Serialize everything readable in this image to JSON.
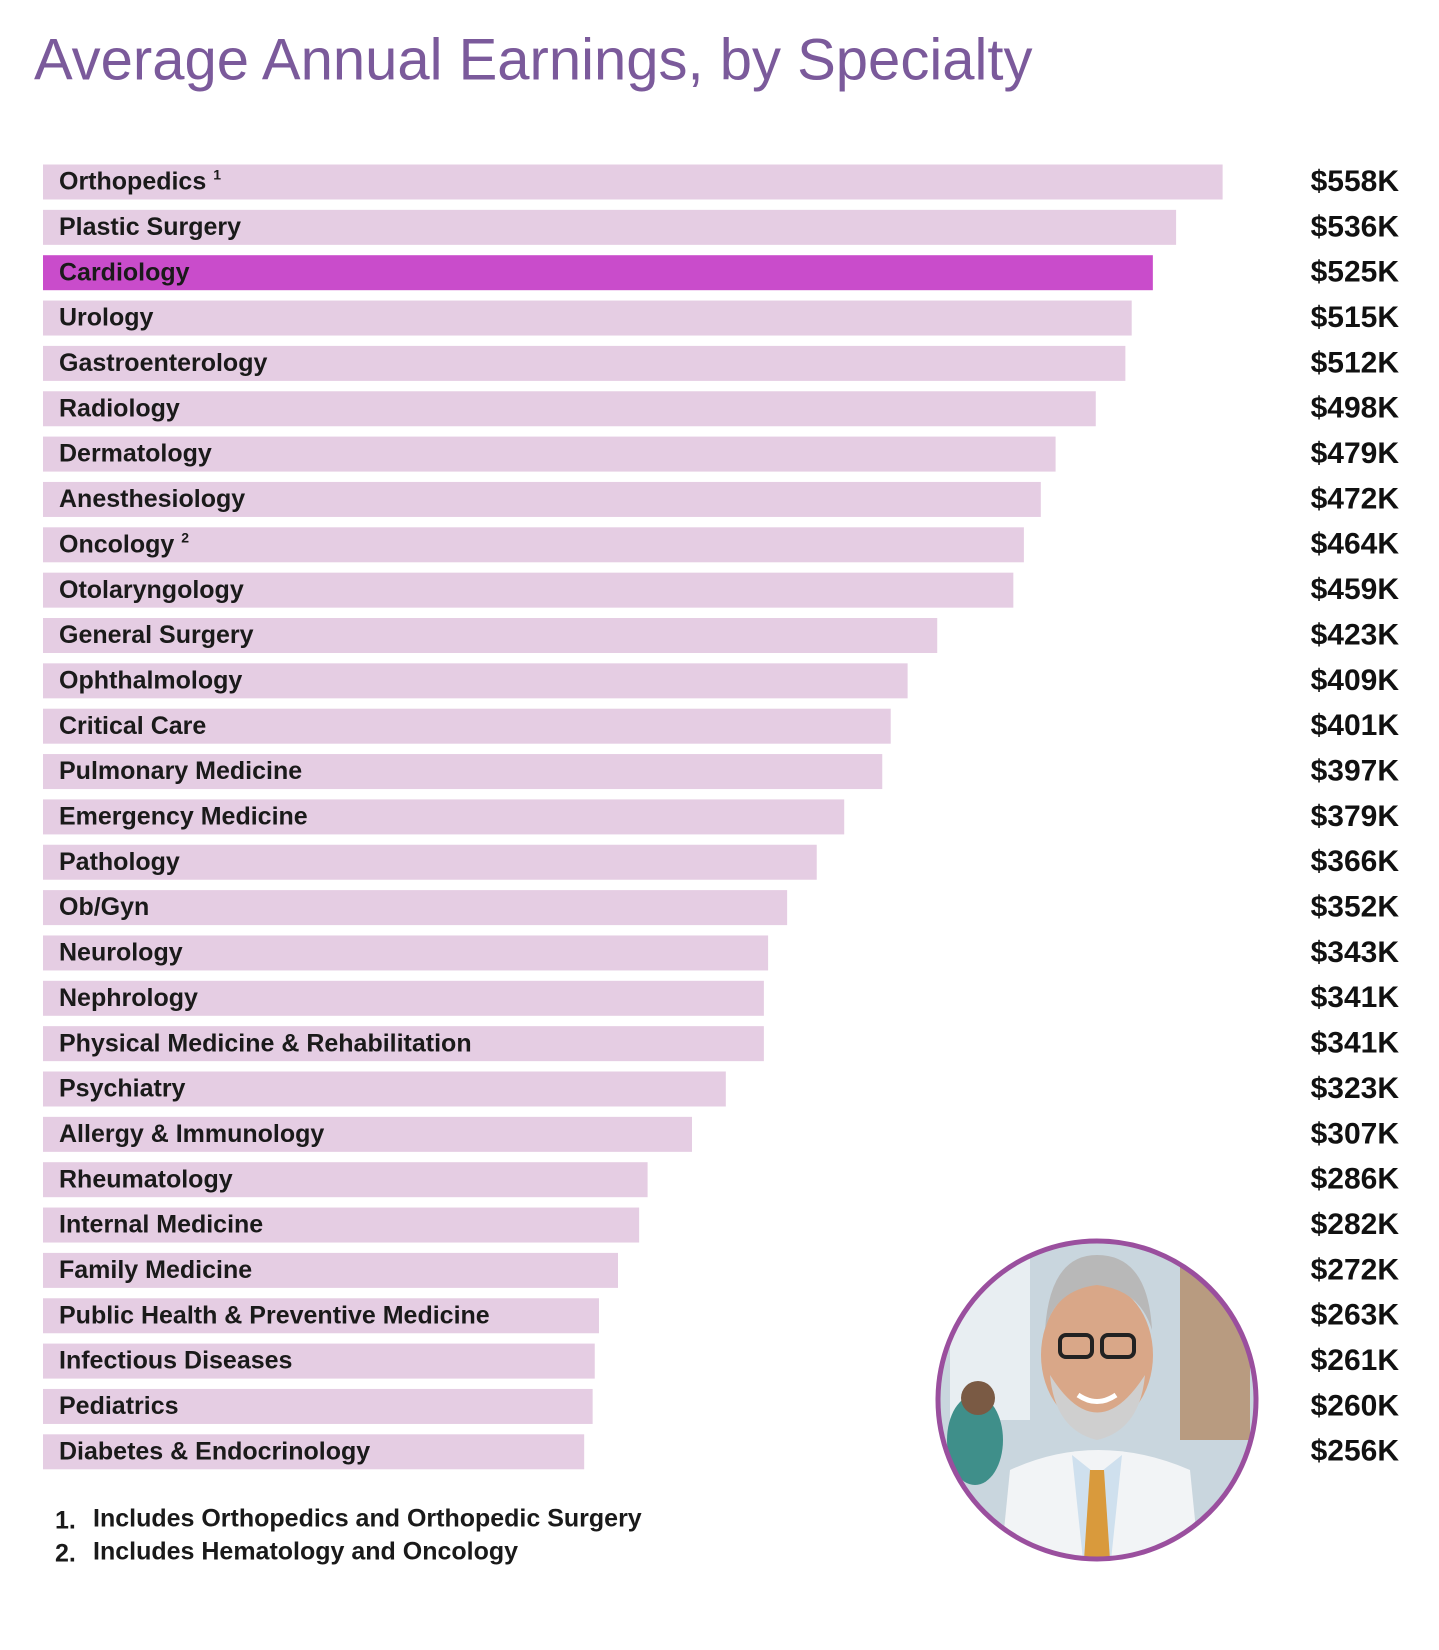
{
  "chart_data": {
    "type": "bar",
    "orientation": "horizontal",
    "title": "Average Annual Earnings, by Specialty",
    "categories": [
      "Orthopedics",
      "Plastic Surgery",
      "Cardiology",
      "Urology",
      "Gastroenterology",
      "Radiology",
      "Dermatology",
      "Anesthesiology",
      "Oncology",
      "Otolaryngology",
      "General Surgery",
      "Ophthalmology",
      "Critical Care",
      "Pulmonary Medicine",
      "Emergency Medicine",
      "Pathology",
      "Ob/Gyn",
      "Neurology",
      "Nephrology",
      "Physical Medicine & Rehabilitation",
      "Psychiatry",
      "Allergy & Immunology",
      "Rheumatology",
      "Internal Medicine",
      "Family Medicine",
      "Public Health & Preventive Medicine",
      "Infectious Diseases",
      "Pediatrics",
      "Diabetes & Endocrinology"
    ],
    "category_notes": [
      "1",
      null,
      null,
      null,
      null,
      null,
      null,
      null,
      "2",
      null,
      null,
      null,
      null,
      null,
      null,
      null,
      null,
      null,
      null,
      null,
      null,
      null,
      null,
      null,
      null,
      null,
      null,
      null,
      null
    ],
    "values": [
      558,
      536,
      525,
      515,
      512,
      498,
      479,
      472,
      464,
      459,
      423,
      409,
      401,
      397,
      379,
      366,
      352,
      343,
      341,
      341,
      323,
      307,
      286,
      282,
      272,
      263,
      261,
      260,
      256
    ],
    "value_labels": [
      "$558K",
      "$536K",
      "$525K",
      "$515K",
      "$512K",
      "$498K",
      "$479K",
      "$472K",
      "$464K",
      "$459K",
      "$423K",
      "$409K",
      "$401K",
      "$397K",
      "$379K",
      "$366K",
      "$352K",
      "$343K",
      "$341K",
      "$341K",
      "$323K",
      "$307K",
      "$286K",
      "$282K",
      "$272K",
      "$263K",
      "$261K",
      "$260K",
      "$256K"
    ],
    "color": "#e5cde3",
    "highlight": {
      "category": "Cardiology",
      "color": "#c94ccb",
      "value_label_color": "#d35bd5"
    },
    "footnotes": [
      {
        "marker": "1.",
        "text": "Includes Orthopedics and Orthopedic Surgery"
      },
      {
        "marker": "2.",
        "text": "Includes Hematology and Oncology"
      }
    ]
  }
}
